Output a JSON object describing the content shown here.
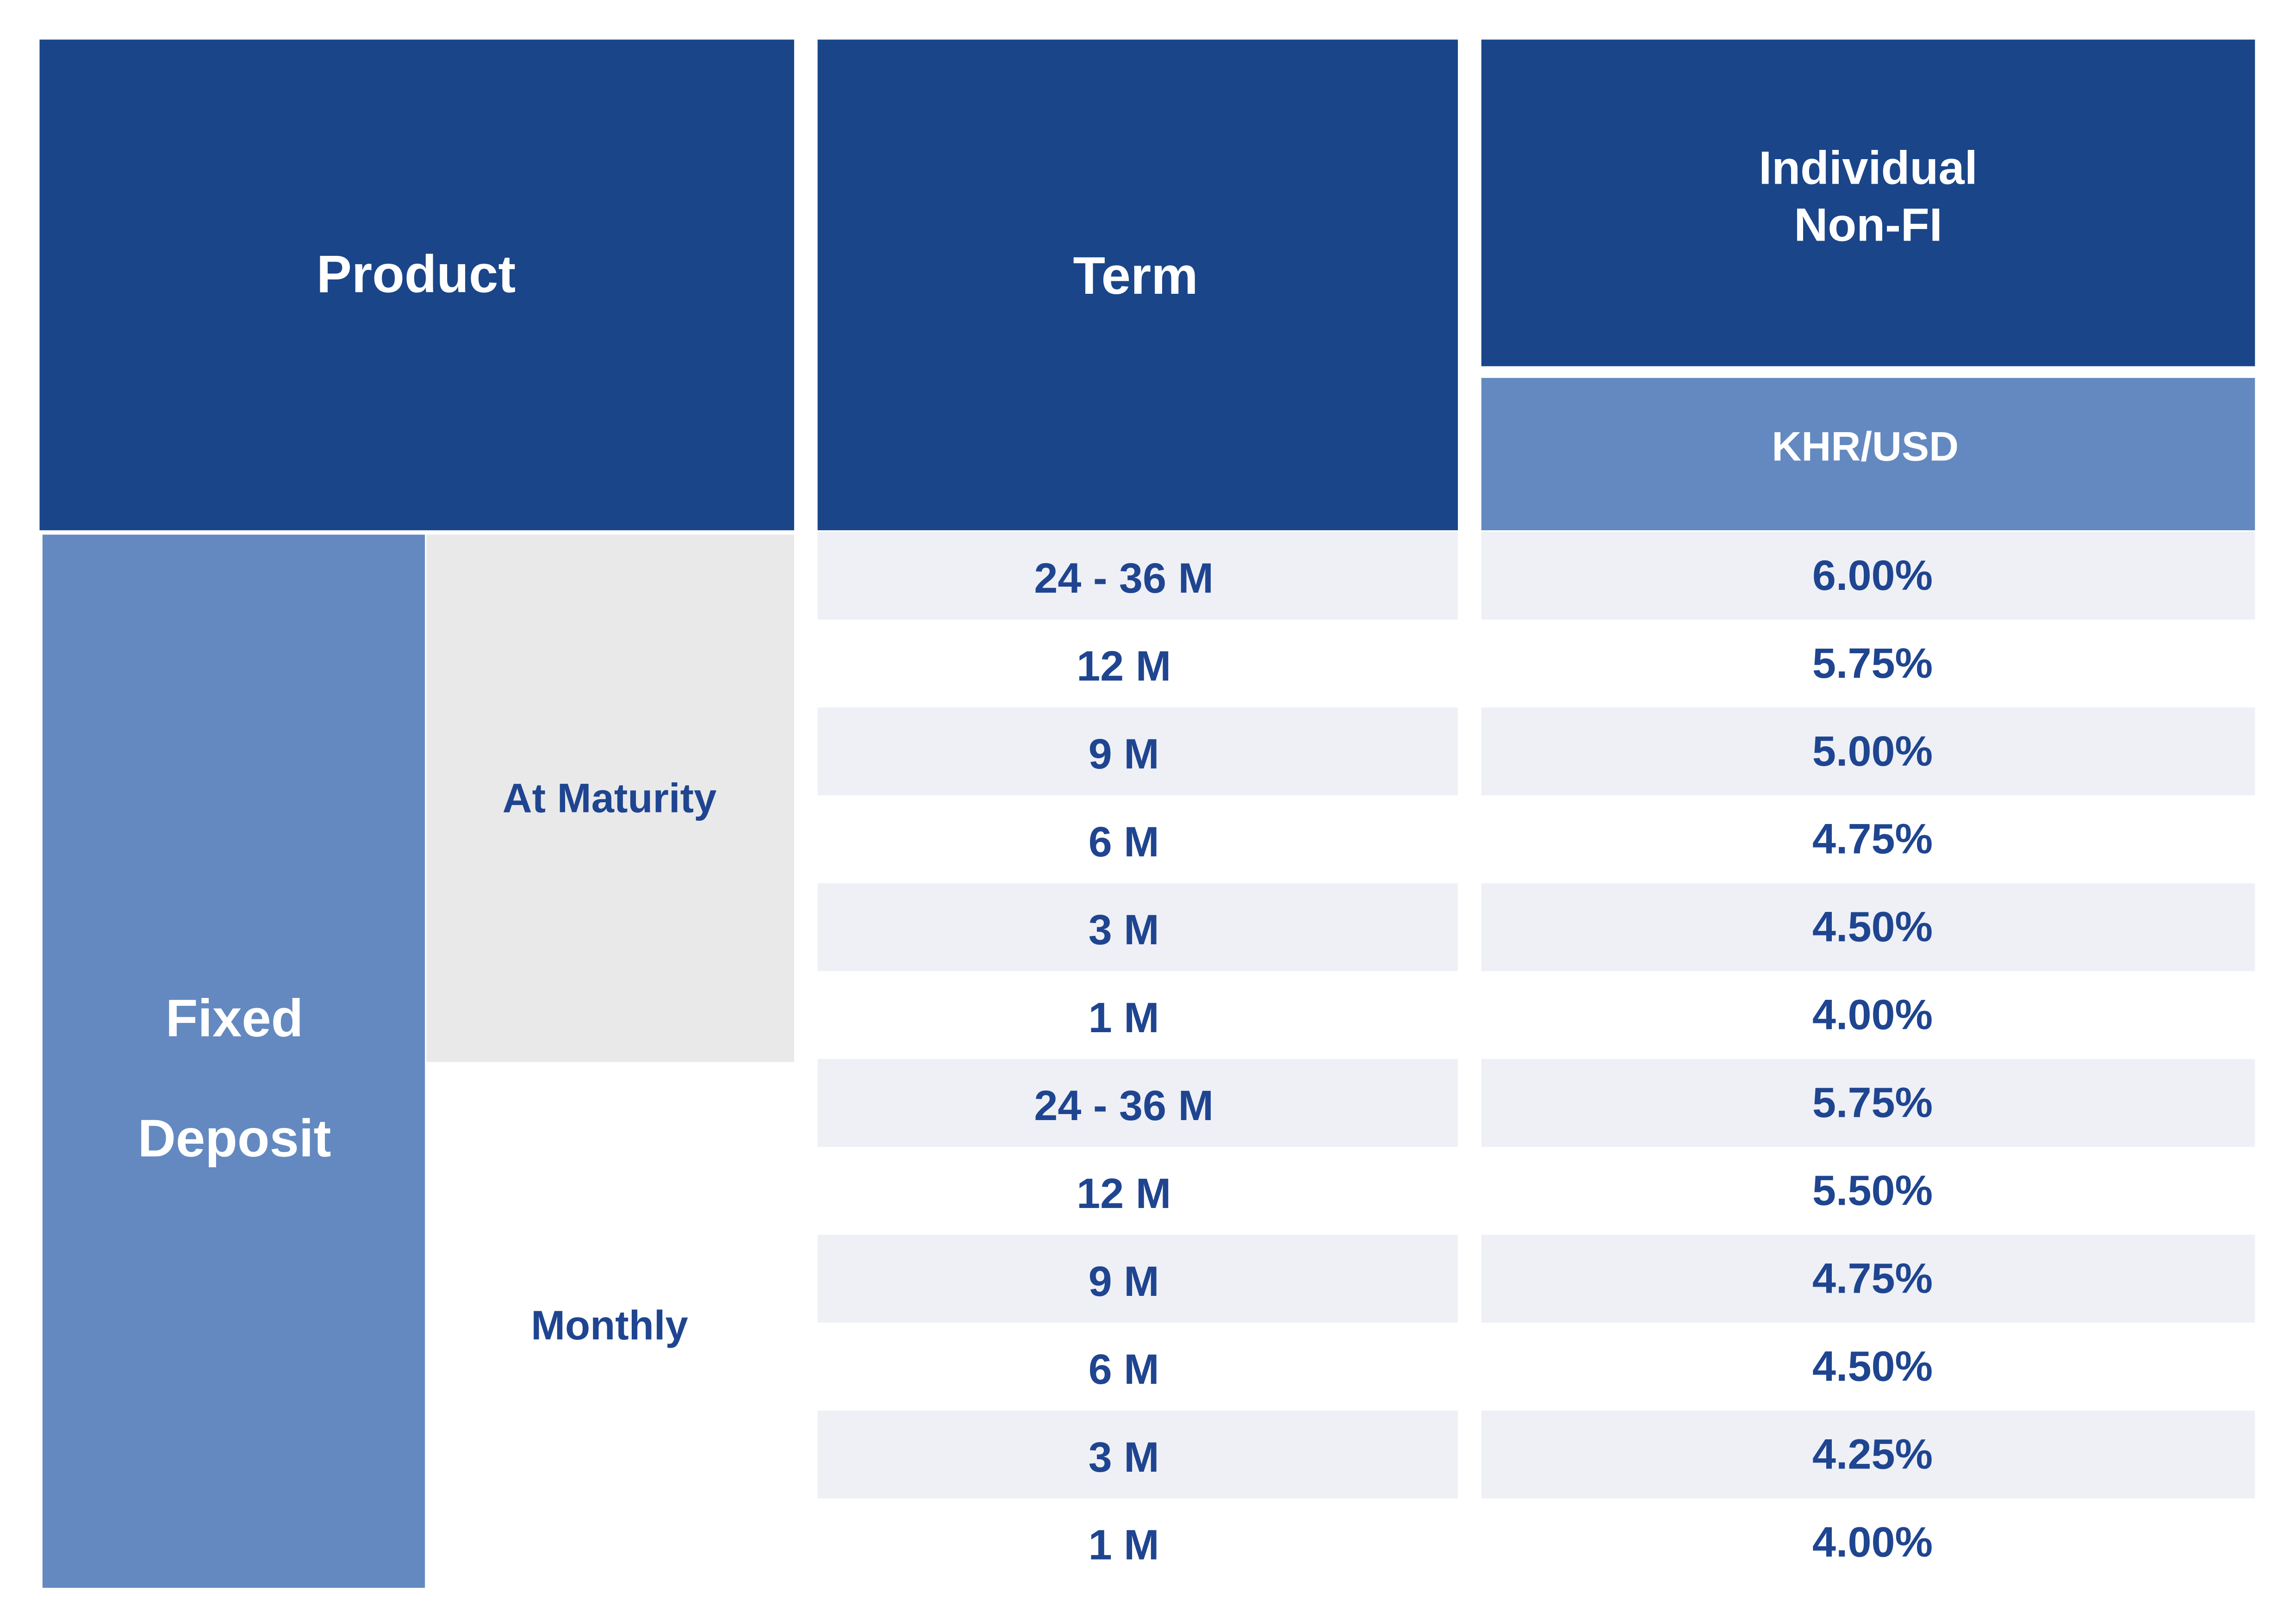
{
  "table": {
    "header": {
      "product": "Product",
      "term": "Term",
      "segment": [
        "Individual",
        "Non-FI"
      ],
      "currency": "KHR/USD"
    },
    "product": [
      "Fixed",
      "Deposit"
    ],
    "groups": [
      {
        "name": "At Maturity",
        "rows": [
          [
            "24 - 36 M",
            "6.00%"
          ],
          [
            "12 M",
            "5.75%"
          ],
          [
            "9 M",
            "5.00%"
          ],
          [
            "6 M",
            "4.75%"
          ],
          [
            "3 M",
            "4.50%"
          ],
          [
            "1 M",
            "4.00%"
          ]
        ]
      },
      {
        "name": "Monthly",
        "rows": [
          [
            "24 - 36 M",
            "5.75%"
          ],
          [
            "12 M",
            "5.50%"
          ],
          [
            "9 M",
            "4.75%"
          ],
          [
            "6 M",
            "4.50%"
          ],
          [
            "3 M",
            "4.25%"
          ],
          [
            "1 M",
            "4.00%"
          ]
        ]
      }
    ]
  }
}
